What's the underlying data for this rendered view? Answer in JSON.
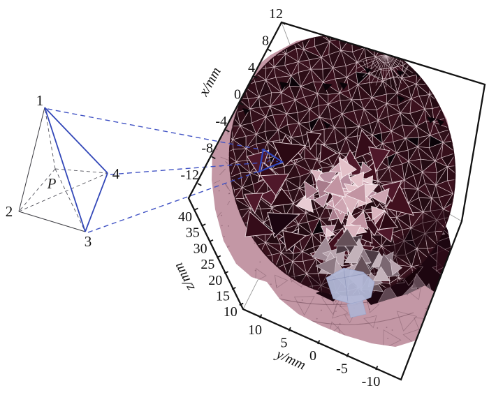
{
  "chart_data": {
    "type": "3d-mesh",
    "title": "",
    "description": "Tetrahedral finite-element mesh of a cylindrical volume with an inner refined region exposed; one tetrahedral element is highlighted in blue and shown enlarged at left with vertices 1-4 and interior point P",
    "axes": [
      {
        "name": "x",
        "label": "x/mm",
        "ticks": [
          12,
          8,
          4,
          0,
          -4,
          -8,
          -12
        ],
        "range": [
          -13,
          13
        ]
      },
      {
        "name": "y",
        "label": "y/mm",
        "ticks": [
          10,
          5,
          0,
          -5,
          -10
        ],
        "range": [
          -13,
          13
        ]
      },
      {
        "name": "z",
        "label": "z/mm",
        "ticks": [
          40,
          35,
          30,
          25,
          20,
          15,
          10
        ],
        "range": [
          10,
          40
        ]
      }
    ],
    "grid": false,
    "legend": null
  },
  "axis_labels": {
    "x": "x/mm",
    "z": "z/mm",
    "y": "y/mm"
  },
  "x_ticks": [
    "12",
    "8",
    "4",
    "0",
    "-4",
    "-8",
    "-12"
  ],
  "z_ticks": [
    "40",
    "35",
    "30",
    "25",
    "20",
    "15",
    "10"
  ],
  "y_ticks": [
    "10",
    "5",
    "0",
    "-5",
    "-10"
  ],
  "tetra": {
    "v1": "1",
    "v2": "2",
    "v3": "3",
    "v4": "4",
    "p": "P"
  },
  "colors": {
    "top_face": "#451323",
    "mesh_line": "#d8c2c9",
    "black_tri": "#0a0308",
    "side_dark": "#1d0610",
    "pink": "#c397a5",
    "pink_texture": "rgba(80,40,58,0.35)",
    "lavender": "#b2b8d7",
    "blue": "#3247b8",
    "blue_dash": "#4153c4",
    "axis": "#121212",
    "hidden_edge": "#9a9a9a",
    "light_cluster": [
      "#dab4be",
      "#cda4b1",
      "#e8ccd3",
      "#c294a2",
      "#a87b8b",
      "#e3c0c8",
      "#b98fa0"
    ],
    "dark_cluster": [
      "#2b0913",
      "#41101e",
      "#1b0510",
      "#4f182a",
      "#350c19"
    ],
    "gray_cluster": [
      "#a08b96",
      "#7b6771",
      "#b8a4ae",
      "#655058",
      "#8e7a84",
      "#4d3b44",
      "#c3b2ba"
    ],
    "side_tris": [
      "#240913",
      "#2d0b17",
      "#180409",
      "#6b545e",
      "#8a727c"
    ]
  },
  "black_triangles": [
    [
      400,
      117
    ],
    [
      462,
      119
    ],
    [
      486,
      118
    ],
    [
      567,
      100
    ],
    [
      594,
      102
    ],
    [
      568,
      136
    ],
    [
      611,
      167
    ],
    [
      463,
      174
    ],
    [
      347,
      155
    ],
    [
      641,
      130
    ],
    [
      625,
      170
    ],
    [
      521,
      96
    ]
  ]
}
